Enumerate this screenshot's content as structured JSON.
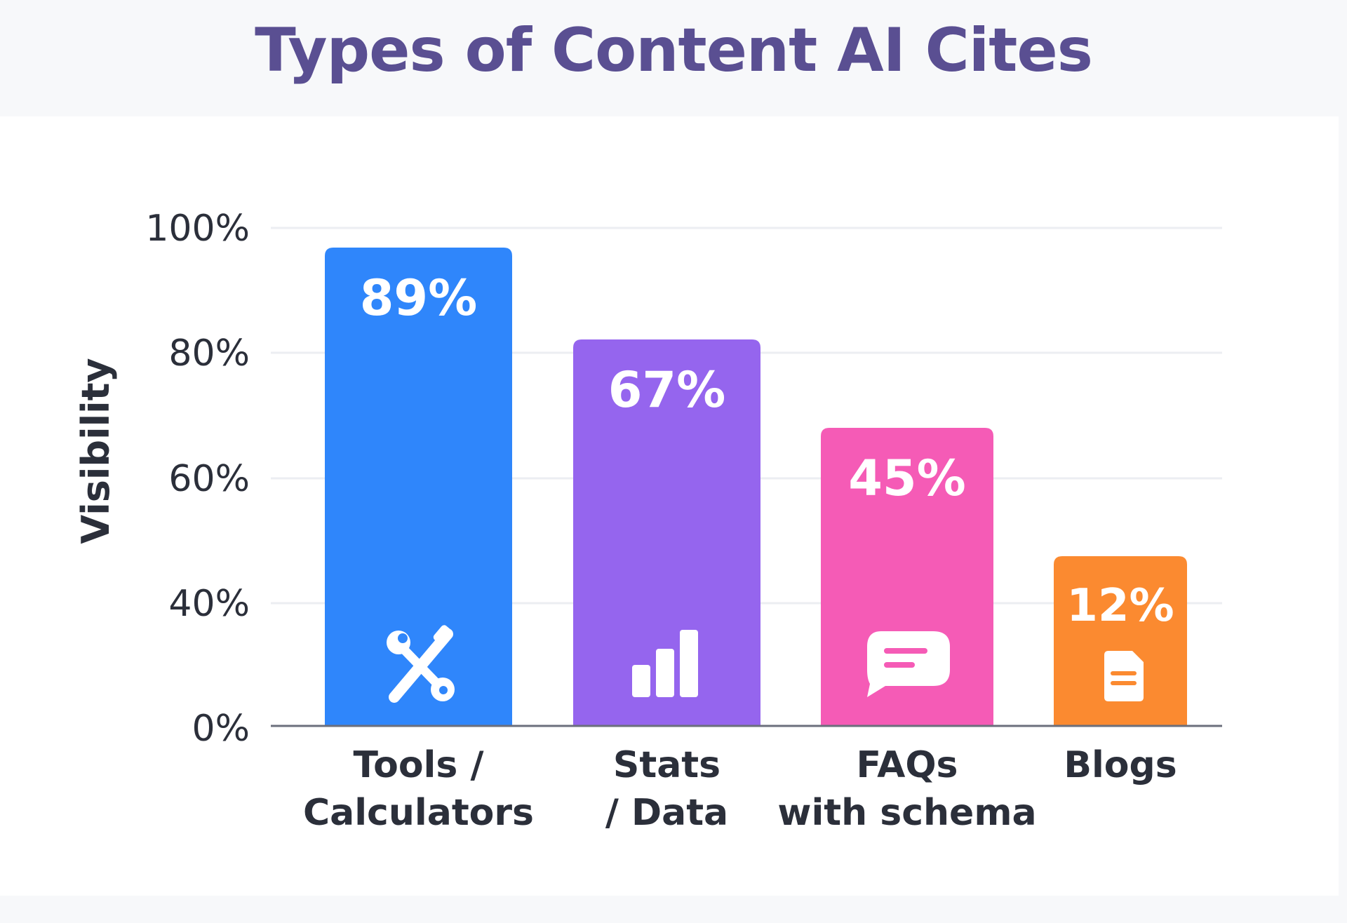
{
  "title": "Types of Content AI Cites",
  "chart_data": {
    "type": "bar",
    "title": "Types of Content AI Cites",
    "ylabel": "Visibility",
    "xlabel": "",
    "ylim": [
      0,
      100
    ],
    "yticks": [
      "0%",
      "40%",
      "60%",
      "80%",
      "100%"
    ],
    "ytick_values": [
      0,
      40,
      60,
      80,
      100
    ],
    "grid": true,
    "categories": [
      [
        "Tools /",
        "Calculators"
      ],
      [
        "Stats",
        "/ Data"
      ],
      [
        "FAQs",
        "with schema"
      ],
      [
        "Blogs"
      ]
    ],
    "values": [
      89,
      67,
      45,
      12
    ],
    "data_labels": [
      "89%",
      "67%",
      "45%",
      "12%"
    ],
    "colors": [
      "#2f86fb",
      "#9565ee",
      "#f55bb6",
      "#fb8a30"
    ],
    "icons": [
      "tools-icon",
      "bar-chart-icon",
      "chat-bubble-icon",
      "document-icon"
    ]
  }
}
